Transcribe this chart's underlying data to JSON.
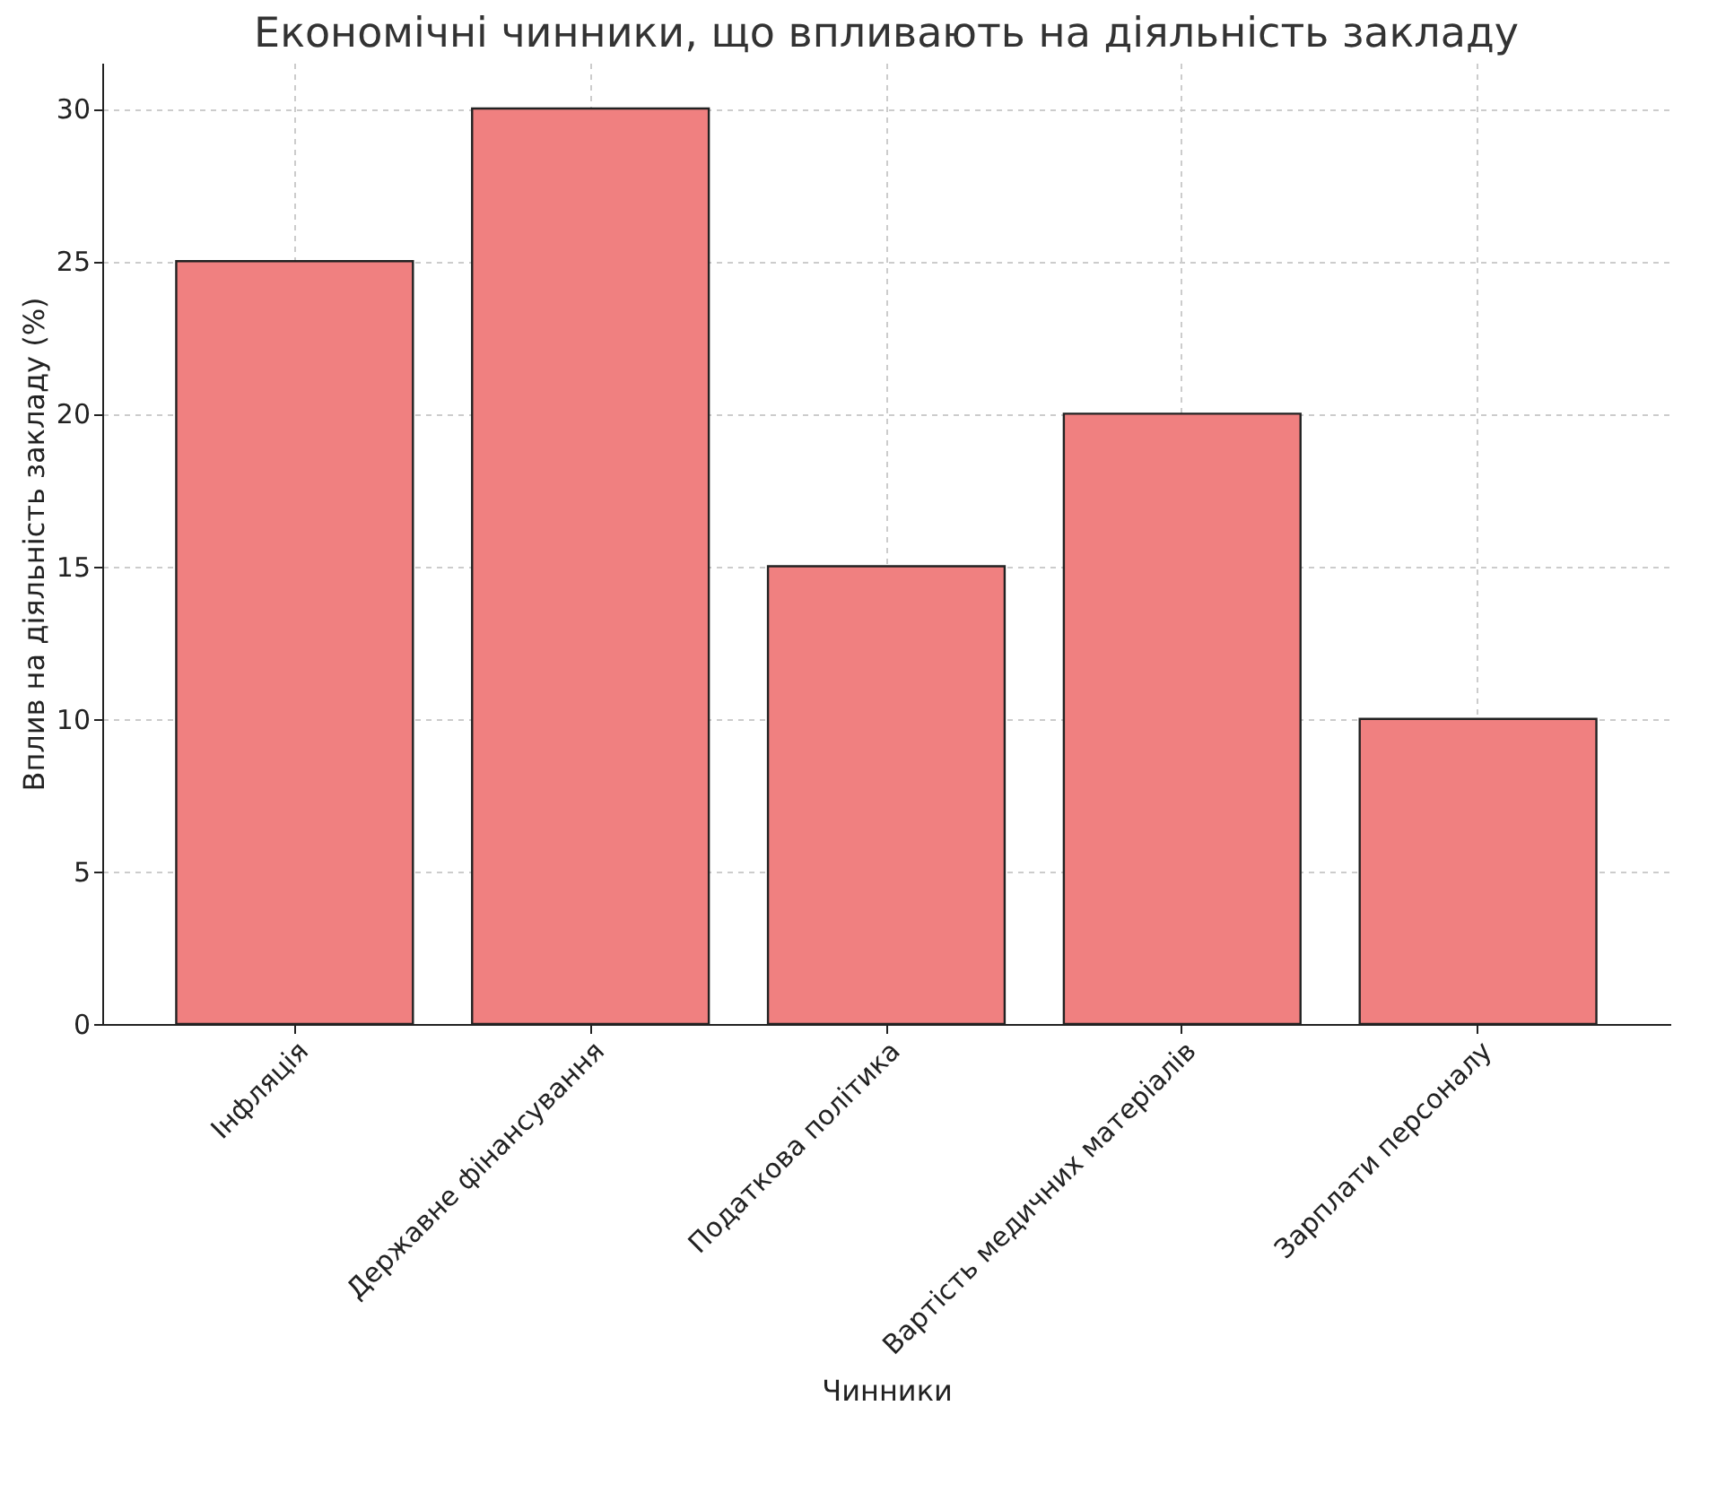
{
  "chart_data": {
    "type": "bar",
    "title": "Економічні чинники, що впливають на діяльність закладу",
    "xlabel": "Чинники",
    "ylabel": "Вплив на діяльність закладу (%)",
    "categories": [
      "Інфляція",
      "Державне фінансування",
      "Податкова політика",
      "Вартість медичних матеріалів",
      "Зарплати персоналу"
    ],
    "values": [
      25,
      30,
      15,
      20,
      10
    ],
    "color": "#f08080",
    "ylim": [
      0,
      31.5
    ],
    "yticks": [
      0,
      5,
      10,
      15,
      20,
      25,
      30
    ],
    "grid": true
  }
}
